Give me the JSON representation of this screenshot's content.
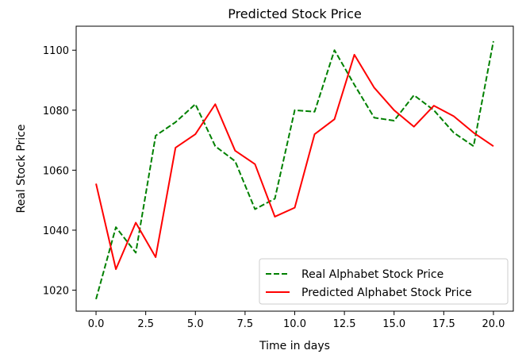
{
  "chart_data": {
    "type": "line",
    "title": "Predicted Stock Price",
    "xlabel": "Time in days",
    "ylabel": "Real Stock Price",
    "xlim": [
      -1,
      21
    ],
    "ylim": [
      1013,
      1108
    ],
    "xticks": [
      0.0,
      2.5,
      5.0,
      7.5,
      10.0,
      12.5,
      15.0,
      17.5,
      20.0
    ],
    "xtick_labels": [
      "0.0",
      "2.5",
      "5.0",
      "7.5",
      "10.0",
      "12.5",
      "15.0",
      "17.5",
      "20.0"
    ],
    "yticks": [
      1020,
      1040,
      1060,
      1080,
      1100
    ],
    "ytick_labels": [
      "1020",
      "1040",
      "1060",
      "1080",
      "1100"
    ],
    "grid": false,
    "legend_position": "lower-right",
    "x": [
      0,
      1,
      2,
      3,
      4,
      5,
      6,
      7,
      8,
      9,
      10,
      11,
      12,
      13,
      14,
      15,
      16,
      17,
      18,
      19,
      20
    ],
    "series": [
      {
        "name": "Real Alphabet Stock Price",
        "color": "#008000",
        "style": "dashed",
        "values": [
          1017,
          1041,
          1032.5,
          1071.5,
          1076,
          1082,
          1068,
          1063,
          1047,
          1050.5,
          1080,
          1079.5,
          1100,
          1088.5,
          1077.5,
          1076.5,
          1085,
          1080,
          1072.5,
          1068,
          1103
        ]
      },
      {
        "name": "Predicted Alphabet Stock Price",
        "color": "#ff0000",
        "style": "solid",
        "values": [
          1055.5,
          1027,
          1042.5,
          1031,
          1067.5,
          1072,
          1082,
          1066.5,
          1062,
          1044.5,
          1047.5,
          1072,
          1077,
          1098.5,
          1087.5,
          1080,
          1074.5,
          1081.5,
          1078,
          1072.5,
          1068
        ]
      }
    ]
  }
}
